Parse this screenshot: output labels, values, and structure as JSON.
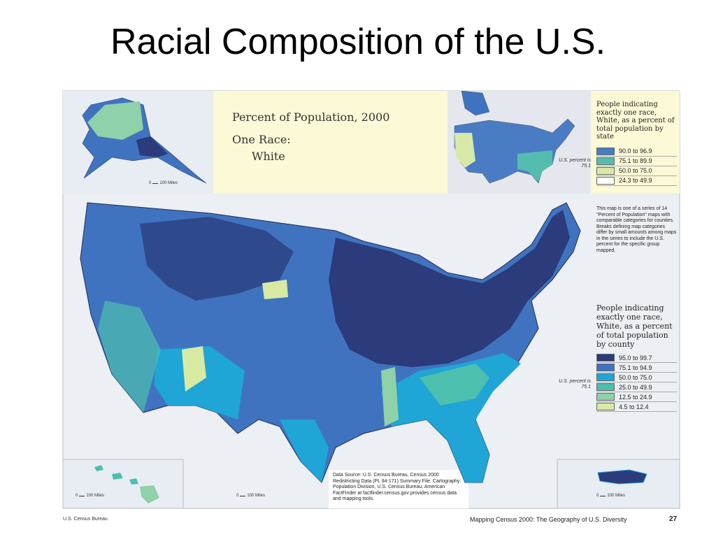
{
  "title": "Racial Composition of the U.S.",
  "map": {
    "heading": "Percent of Population, 2000",
    "subheading": "One Race:",
    "group": "White",
    "state_legend": {
      "title": "People indicating exactly one race, White, as a percent of total population by state",
      "us_percent": "U.S. percent is 75.1",
      "items": [
        {
          "label": "90.0 to 96.9",
          "color": "#4a7cc4"
        },
        {
          "label": "75.1 to 89.9",
          "color": "#55bdb0"
        },
        {
          "label": "50.0 to 75.0",
          "color": "#d6e9a8"
        },
        {
          "label": "24.3 to 49.9",
          "color": "#ffffff"
        }
      ]
    },
    "note": "This map is one of a series of 14 \"Percent of Population\" maps with comparable categories for counties. Breaks defining map categories differ by small amounts among maps in the series to include the U.S. percent for the specific group mapped.",
    "county_legend": {
      "title": "People indicating exactly one race, White, as a percent of total population by county",
      "us_percent": "U.S. percent is 75.1",
      "items": [
        {
          "label": "95.0 to 99.7",
          "color": "#2b3b7c"
        },
        {
          "label": "75.1 to 94.9",
          "color": "#3f73c0"
        },
        {
          "label": "50.0 to 75.0",
          "color": "#1fa5d6"
        },
        {
          "label": "25.0 to 49.9",
          "color": "#4dbfae"
        },
        {
          "label": "12.5 to 24.9",
          "color": "#8fd1a8"
        },
        {
          "label": "4.5 to 12.4",
          "color": "#d8eaa2"
        }
      ]
    },
    "source": "Data Source: U.S. Census Bureau, Census 2000 Redistricting Data (PL 94-171) Summary File. Cartography: Population Division, U.S. Census Bureau. American FactFinder at factfinder.census.gov provides census data and mapping tools.",
    "scale_bars": [
      {
        "zero": "0",
        "label": "100 Miles"
      },
      {
        "zero": "0",
        "label": "100 Miles"
      },
      {
        "zero": "0",
        "label": "100 Miles"
      },
      {
        "zero": "0",
        "label": "100 Miles"
      }
    ]
  },
  "footer": {
    "left": "U.S. Census Bureau",
    "right": "Mapping Census 2000:  The Geography of U.S. Diversity",
    "page": "27"
  }
}
